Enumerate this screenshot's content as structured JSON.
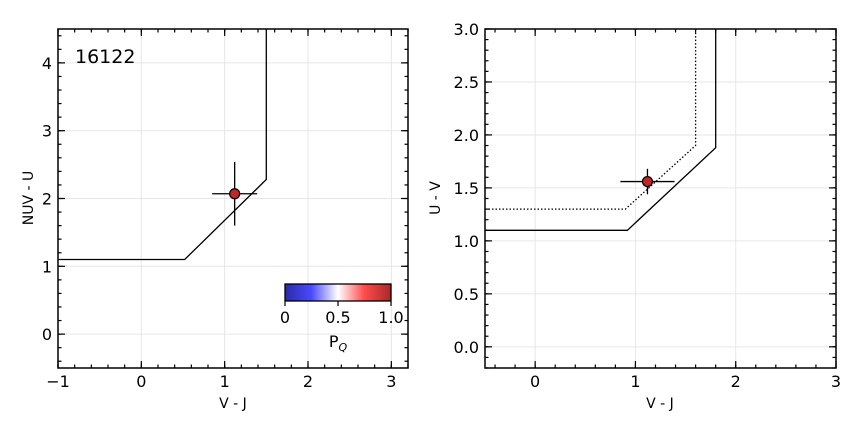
{
  "chart_data": [
    {
      "type": "scatter",
      "annotation": "16122",
      "xlabel": "V - J",
      "ylabel": "NUV - U",
      "xlim": [
        -1,
        3.2
      ],
      "ylim": [
        -0.5,
        4.5
      ],
      "xticks": [
        -1,
        0,
        1,
        2,
        3
      ],
      "yticks": [
        0,
        1,
        2,
        3,
        4
      ],
      "grid": true,
      "selection_boundary": [
        [
          -1,
          1.1
        ],
        [
          0.52,
          1.1
        ],
        [
          1.5,
          2.28
        ],
        [
          1.5,
          4.5
        ]
      ],
      "points": [
        {
          "x": 1.12,
          "y": 2.07,
          "xerr": 0.27,
          "yerr": 0.47,
          "color": "#c0252a",
          "p_q": 0.95
        }
      ],
      "colorbar": {
        "label": "P",
        "label_sub": "Q",
        "ticks": [
          "0",
          "0.5",
          "1.0"
        ],
        "vmin": 0,
        "vmax": 1,
        "colors": [
          "#2a2aa6",
          "#4a4aff",
          "#ffffff",
          "#ff4a4a",
          "#a62a2a"
        ]
      }
    },
    {
      "type": "scatter",
      "xlabel": "V - J",
      "ylabel": "U - V",
      "xlim": [
        -0.5,
        3
      ],
      "ylim": [
        -0.2,
        3
      ],
      "xticks": [
        0,
        1,
        2,
        3
      ],
      "yticks": [
        0.0,
        0.5,
        1.0,
        1.5,
        2.0,
        2.5,
        3.0
      ],
      "ytick_labels": [
        "0.0",
        "0.5",
        "1.0",
        "1.5",
        "2.0",
        "2.5",
        "3.0"
      ],
      "grid": true,
      "selection_boundary": [
        [
          -0.5,
          1.1
        ],
        [
          0.92,
          1.1
        ],
        [
          1.8,
          1.88
        ],
        [
          1.8,
          3
        ]
      ],
      "selection_boundary_dotted": [
        [
          -0.5,
          1.3
        ],
        [
          0.9,
          1.3
        ],
        [
          1.6,
          1.9
        ],
        [
          1.6,
          3
        ]
      ],
      "points": [
        {
          "x": 1.12,
          "y": 1.56,
          "xerr": 0.27,
          "yerr": 0.12,
          "color": "#c0252a",
          "p_q": 0.95
        }
      ]
    }
  ]
}
